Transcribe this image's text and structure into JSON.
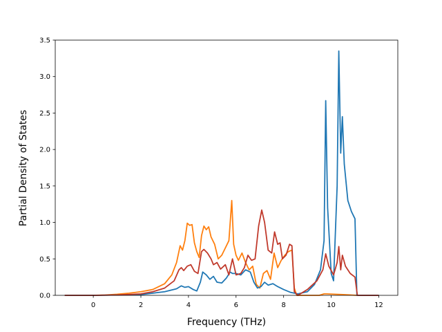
{
  "chart_data": {
    "type": "line",
    "title": "",
    "xlabel": "Frequency (THz)",
    "ylabel": "Partial Density of States",
    "xlim": [
      -1.6,
      12.8
    ],
    "ylim": [
      0,
      3.5
    ],
    "xticks": [
      0,
      2,
      4,
      6,
      8,
      10,
      12
    ],
    "yticks": [
      0.0,
      0.5,
      1.0,
      1.5,
      2.0,
      2.5,
      3.0,
      3.5
    ],
    "xtick_labels": [
      "0",
      "2",
      "4",
      "6",
      "8",
      "10",
      "12"
    ],
    "ytick_labels": [
      "0.0",
      "0.5",
      "1.0",
      "1.5",
      "2.0",
      "2.5",
      "3.0",
      "3.5"
    ],
    "grid": false,
    "legend": "none",
    "series": [
      {
        "color": "#ff7f0e",
        "points": [
          [
            -1.2,
            0
          ],
          [
            0.0,
            0.0
          ],
          [
            0.5,
            0.005
          ],
          [
            1.0,
            0.015
          ],
          [
            1.5,
            0.03
          ],
          [
            2.0,
            0.05
          ],
          [
            2.5,
            0.08
          ],
          [
            3.0,
            0.16
          ],
          [
            3.3,
            0.28
          ],
          [
            3.5,
            0.45
          ],
          [
            3.65,
            0.68
          ],
          [
            3.75,
            0.62
          ],
          [
            3.85,
            0.75
          ],
          [
            3.95,
            0.99
          ],
          [
            4.05,
            0.96
          ],
          [
            4.15,
            0.97
          ],
          [
            4.25,
            0.72
          ],
          [
            4.35,
            0.6
          ],
          [
            4.45,
            0.52
          ],
          [
            4.55,
            0.82
          ],
          [
            4.65,
            0.95
          ],
          [
            4.75,
            0.9
          ],
          [
            4.85,
            0.94
          ],
          [
            4.95,
            0.8
          ],
          [
            5.1,
            0.7
          ],
          [
            5.25,
            0.5
          ],
          [
            5.4,
            0.55
          ],
          [
            5.55,
            0.65
          ],
          [
            5.7,
            0.75
          ],
          [
            5.82,
            1.3
          ],
          [
            5.9,
            0.7
          ],
          [
            6.0,
            0.55
          ],
          [
            6.1,
            0.48
          ],
          [
            6.25,
            0.58
          ],
          [
            6.4,
            0.45
          ],
          [
            6.55,
            0.35
          ],
          [
            6.7,
            0.4
          ],
          [
            6.85,
            0.15
          ],
          [
            7.0,
            0.1
          ],
          [
            7.15,
            0.3
          ],
          [
            7.3,
            0.34
          ],
          [
            7.45,
            0.22
          ],
          [
            7.6,
            0.58
          ],
          [
            7.75,
            0.38
          ],
          [
            7.9,
            0.48
          ],
          [
            8.05,
            0.55
          ],
          [
            8.2,
            0.6
          ],
          [
            8.35,
            0.62
          ],
          [
            8.45,
            0.1
          ],
          [
            8.55,
            0.0
          ],
          [
            9.0,
            0.0
          ],
          [
            9.5,
            0.0
          ],
          [
            9.7,
            0.02
          ],
          [
            9.8,
            0.02
          ],
          [
            10.5,
            0.01
          ],
          [
            11.1,
            0.0
          ],
          [
            12.0,
            0.0
          ]
        ]
      },
      {
        "color": "#1f77b4",
        "points": [
          [
            -1.2,
            0
          ],
          [
            0.0,
            0.0
          ],
          [
            1.0,
            0.005
          ],
          [
            2.0,
            0.01
          ],
          [
            3.0,
            0.05
          ],
          [
            3.5,
            0.09
          ],
          [
            3.7,
            0.13
          ],
          [
            3.85,
            0.11
          ],
          [
            4.0,
            0.12
          ],
          [
            4.2,
            0.08
          ],
          [
            4.35,
            0.06
          ],
          [
            4.5,
            0.18
          ],
          [
            4.6,
            0.32
          ],
          [
            4.75,
            0.28
          ],
          [
            4.9,
            0.22
          ],
          [
            5.05,
            0.26
          ],
          [
            5.2,
            0.18
          ],
          [
            5.4,
            0.17
          ],
          [
            5.6,
            0.24
          ],
          [
            5.75,
            0.32
          ],
          [
            5.85,
            0.3
          ],
          [
            6.0,
            0.3
          ],
          [
            6.2,
            0.28
          ],
          [
            6.4,
            0.35
          ],
          [
            6.6,
            0.32
          ],
          [
            6.75,
            0.18
          ],
          [
            6.9,
            0.1
          ],
          [
            7.05,
            0.12
          ],
          [
            7.2,
            0.18
          ],
          [
            7.35,
            0.14
          ],
          [
            7.55,
            0.16
          ],
          [
            7.75,
            0.12
          ],
          [
            8.0,
            0.08
          ],
          [
            8.3,
            0.04
          ],
          [
            8.6,
            0.02
          ],
          [
            9.0,
            0.05
          ],
          [
            9.3,
            0.15
          ],
          [
            9.55,
            0.35
          ],
          [
            9.7,
            0.75
          ],
          [
            9.77,
            2.67
          ],
          [
            9.85,
            1.2
          ],
          [
            10.0,
            0.3
          ],
          [
            10.1,
            0.2
          ],
          [
            10.25,
            1.5
          ],
          [
            10.32,
            3.35
          ],
          [
            10.4,
            1.95
          ],
          [
            10.47,
            2.45
          ],
          [
            10.55,
            1.8
          ],
          [
            10.7,
            1.3
          ],
          [
            10.85,
            1.15
          ],
          [
            11.0,
            1.05
          ],
          [
            11.08,
            0.0
          ],
          [
            11.3,
            0.0
          ],
          [
            12.0,
            0.0
          ]
        ]
      },
      {
        "color": "#c0392b",
        "points": [
          [
            -1.2,
            0
          ],
          [
            0.0,
            0.0
          ],
          [
            1.0,
            0.005
          ],
          [
            2.0,
            0.02
          ],
          [
            2.5,
            0.05
          ],
          [
            3.0,
            0.1
          ],
          [
            3.4,
            0.2
          ],
          [
            3.6,
            0.35
          ],
          [
            3.7,
            0.38
          ],
          [
            3.8,
            0.34
          ],
          [
            3.95,
            0.4
          ],
          [
            4.1,
            0.42
          ],
          [
            4.25,
            0.33
          ],
          [
            4.4,
            0.3
          ],
          [
            4.55,
            0.6
          ],
          [
            4.65,
            0.63
          ],
          [
            4.8,
            0.58
          ],
          [
            4.95,
            0.5
          ],
          [
            5.05,
            0.42
          ],
          [
            5.2,
            0.45
          ],
          [
            5.35,
            0.36
          ],
          [
            5.55,
            0.42
          ],
          [
            5.7,
            0.28
          ],
          [
            5.85,
            0.5
          ],
          [
            6.0,
            0.28
          ],
          [
            6.2,
            0.3
          ],
          [
            6.35,
            0.38
          ],
          [
            6.5,
            0.55
          ],
          [
            6.65,
            0.48
          ],
          [
            6.8,
            0.5
          ],
          [
            6.95,
            0.95
          ],
          [
            7.08,
            1.17
          ],
          [
            7.2,
            1.0
          ],
          [
            7.35,
            0.62
          ],
          [
            7.5,
            0.58
          ],
          [
            7.62,
            0.87
          ],
          [
            7.75,
            0.7
          ],
          [
            7.85,
            0.72
          ],
          [
            7.95,
            0.5
          ],
          [
            8.1,
            0.55
          ],
          [
            8.25,
            0.7
          ],
          [
            8.35,
            0.68
          ],
          [
            8.45,
            0.05
          ],
          [
            8.6,
            0.0
          ],
          [
            9.0,
            0.08
          ],
          [
            9.4,
            0.2
          ],
          [
            9.65,
            0.35
          ],
          [
            9.77,
            0.57
          ],
          [
            9.9,
            0.4
          ],
          [
            10.1,
            0.28
          ],
          [
            10.25,
            0.45
          ],
          [
            10.32,
            0.67
          ],
          [
            10.4,
            0.35
          ],
          [
            10.47,
            0.55
          ],
          [
            10.6,
            0.4
          ],
          [
            10.8,
            0.3
          ],
          [
            11.0,
            0.25
          ],
          [
            11.1,
            0.0
          ],
          [
            11.5,
            0.0
          ],
          [
            12.0,
            0.0
          ]
        ]
      }
    ]
  }
}
